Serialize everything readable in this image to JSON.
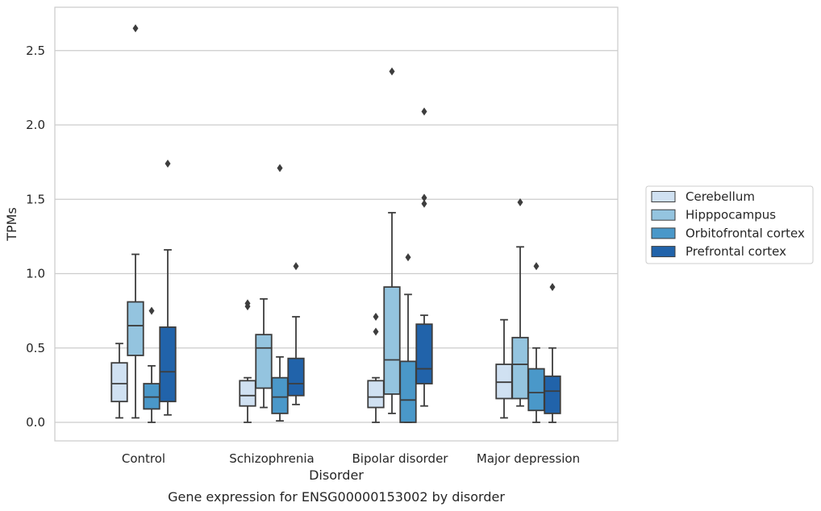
{
  "chart_data": {
    "type": "box",
    "title": "",
    "caption": "Gene expression for ENSG00000153002 by disorder",
    "xlabel": "Disorder",
    "ylabel": "TPMs",
    "ylim": [
      -0.13,
      2.8
    ],
    "yticks": [
      0.0,
      0.5,
      1.0,
      1.5,
      2.0,
      2.5
    ],
    "ytick_labels": [
      "0.0",
      "0.5",
      "1.0",
      "1.5",
      "2.0",
      "2.5"
    ],
    "grid": "horizontal",
    "legend_position": "right",
    "categories": [
      "Control",
      "Schizophrenia",
      "Bipolar disorder",
      "Major depression"
    ],
    "series": [
      {
        "name": "Cerebellum",
        "color": "#d0e1f2",
        "boxes": [
          {
            "whislo": 0.03,
            "q1": 0.14,
            "med": 0.26,
            "q3": 0.4,
            "whishi": 0.53,
            "fliers": []
          },
          {
            "whislo": 0.0,
            "q1": 0.11,
            "med": 0.18,
            "q3": 0.28,
            "whishi": 0.3,
            "fliers": [
              0.78,
              0.8
            ]
          },
          {
            "whislo": 0.0,
            "q1": 0.1,
            "med": 0.17,
            "q3": 0.28,
            "whishi": 0.3,
            "fliers": [
              0.61,
              0.71
            ]
          },
          {
            "whislo": 0.03,
            "q1": 0.16,
            "med": 0.27,
            "q3": 0.39,
            "whishi": 0.69,
            "fliers": []
          }
        ]
      },
      {
        "name": "Hipppocampus",
        "color": "#94c4df",
        "boxes": [
          {
            "whislo": 0.03,
            "q1": 0.45,
            "med": 0.65,
            "q3": 0.81,
            "whishi": 1.13,
            "fliers": [
              2.65
            ]
          },
          {
            "whislo": 0.1,
            "q1": 0.23,
            "med": 0.5,
            "q3": 0.59,
            "whishi": 0.83,
            "fliers": []
          },
          {
            "whislo": 0.06,
            "q1": 0.19,
            "med": 0.42,
            "q3": 0.91,
            "whishi": 1.41,
            "fliers": [
              2.36
            ]
          },
          {
            "whislo": 0.11,
            "q1": 0.16,
            "med": 0.39,
            "q3": 0.57,
            "whishi": 1.18,
            "fliers": [
              1.48
            ]
          }
        ]
      },
      {
        "name": "Orbitofrontal cortex",
        "color": "#4a98c9",
        "boxes": [
          {
            "whislo": 0.0,
            "q1": 0.09,
            "med": 0.17,
            "q3": 0.26,
            "whishi": 0.38,
            "fliers": [
              0.75
            ]
          },
          {
            "whislo": 0.01,
            "q1": 0.06,
            "med": 0.17,
            "q3": 0.3,
            "whishi": 0.44,
            "fliers": [
              1.71
            ]
          },
          {
            "whislo": 0.0,
            "q1": 0.0,
            "med": 0.15,
            "q3": 0.41,
            "whishi": 0.86,
            "fliers": [
              1.11
            ]
          },
          {
            "whislo": 0.0,
            "q1": 0.08,
            "med": 0.2,
            "q3": 0.36,
            "whishi": 0.5,
            "fliers": [
              1.05
            ]
          }
        ]
      },
      {
        "name": "Prefrontal cortex",
        "color": "#2163aa",
        "boxes": [
          {
            "whislo": 0.05,
            "q1": 0.14,
            "med": 0.34,
            "q3": 0.64,
            "whishi": 1.16,
            "fliers": [
              1.74
            ]
          },
          {
            "whislo": 0.12,
            "q1": 0.18,
            "med": 0.26,
            "q3": 0.43,
            "whishi": 0.71,
            "fliers": [
              1.05
            ]
          },
          {
            "whislo": 0.11,
            "q1": 0.26,
            "med": 0.36,
            "q3": 0.66,
            "whishi": 0.72,
            "fliers": [
              1.47,
              1.51,
              2.09
            ]
          },
          {
            "whislo": 0.0,
            "q1": 0.06,
            "med": 0.21,
            "q3": 0.31,
            "whishi": 0.5,
            "fliers": [
              0.91
            ]
          }
        ]
      }
    ]
  }
}
